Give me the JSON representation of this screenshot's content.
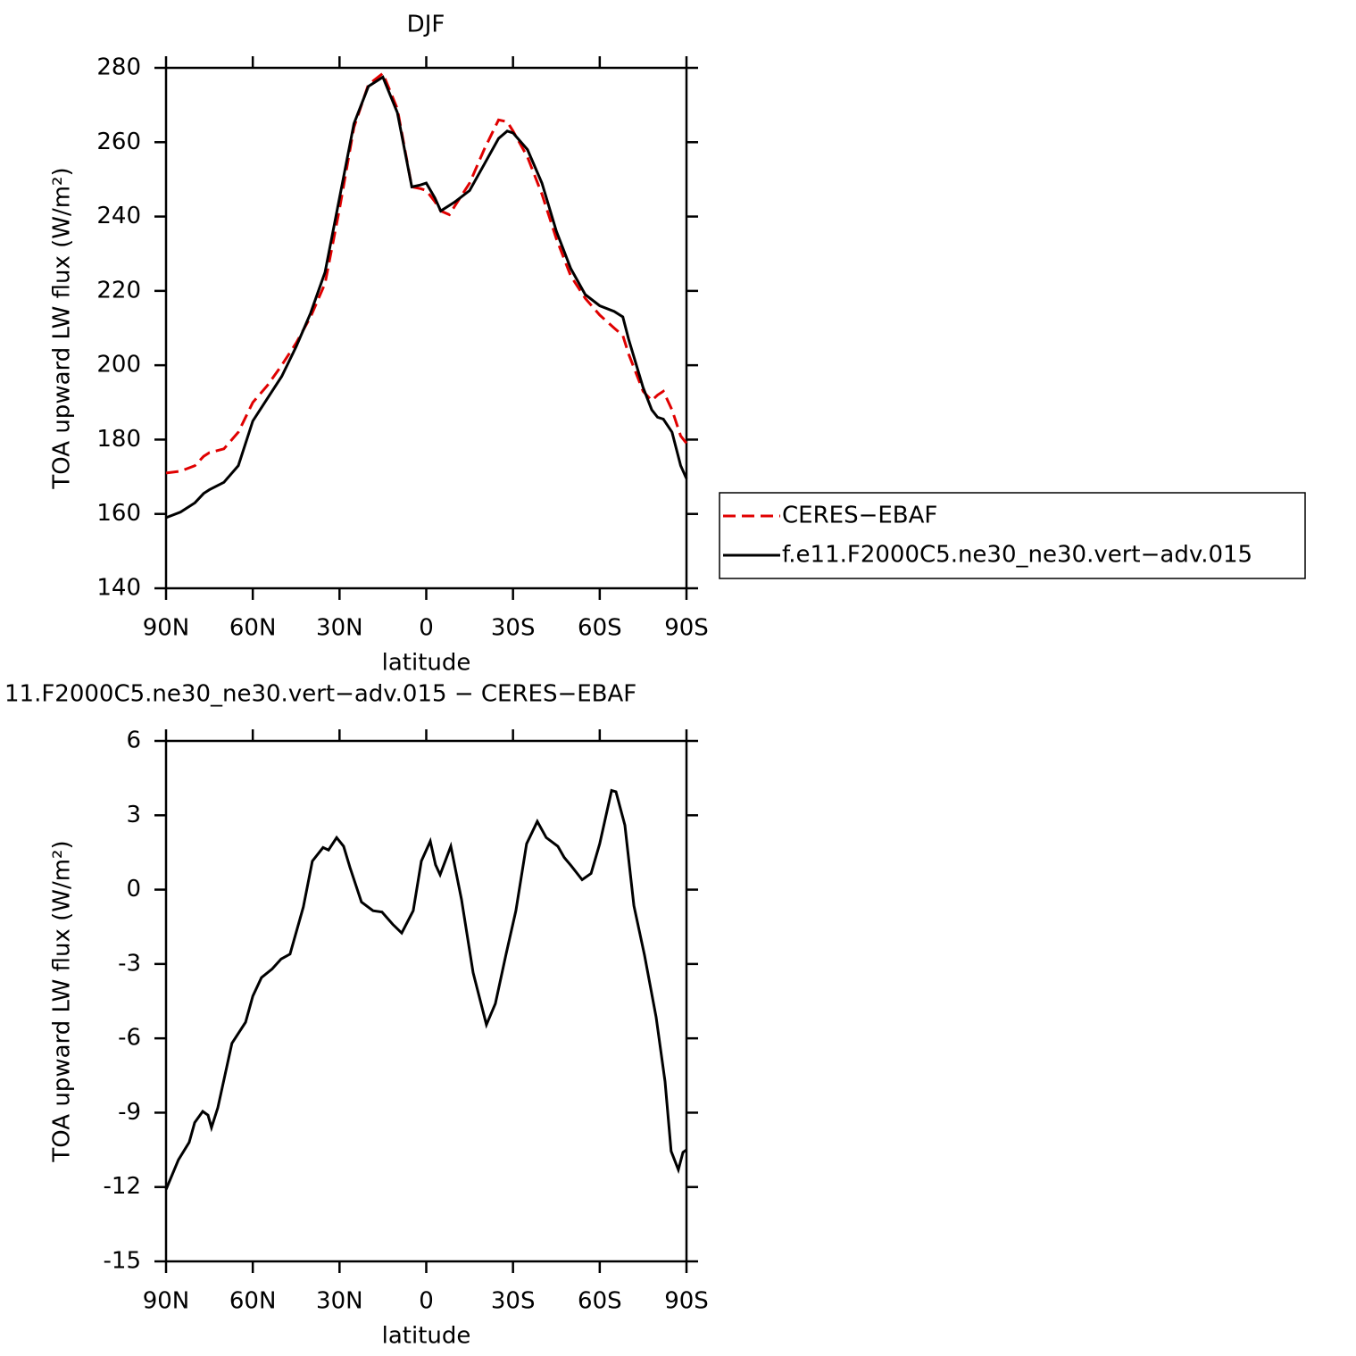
{
  "chart_data": [
    {
      "type": "line",
      "title": "DJF",
      "x_label": "latitude",
      "y_label": "TOA upward LW flux (W/m²)",
      "x": [
        90,
        85,
        80,
        77,
        75,
        70,
        65,
        60,
        55,
        50,
        45,
        40,
        35,
        30,
        25,
        20,
        15,
        10,
        5,
        2,
        0,
        -3,
        -5,
        -8,
        -10,
        -15,
        -20,
        -25,
        -28,
        -30,
        -35,
        -40,
        -45,
        -50,
        -55,
        -60,
        -65,
        -68,
        -70,
        -75,
        -78,
        -80,
        -82,
        -85,
        -88,
        -90
      ],
      "series": [
        {
          "name": "CERES−EBAF",
          "color": "#e00000",
          "style": "dashed",
          "values": [
            171,
            171.5,
            173,
            175.5,
            176.5,
            177.5,
            182,
            190,
            194.5,
            200,
            206,
            213,
            222,
            242,
            264,
            275.5,
            278.5,
            269,
            248,
            247.5,
            247,
            244,
            241.5,
            240.5,
            243,
            249,
            258,
            266,
            265.5,
            263,
            256,
            246,
            234,
            224,
            218,
            213.5,
            210,
            208,
            203,
            193,
            190.5,
            192,
            193,
            188,
            181,
            179
          ]
        },
        {
          "name": "f.e11.F2000C5.ne30_ne30.vert−adv.015",
          "color": "#000000",
          "style": "solid",
          "values": [
            159,
            160.5,
            163,
            165.5,
            166.5,
            168.5,
            173,
            185,
            191,
            197,
            205,
            214,
            225,
            245,
            265,
            275,
            277.5,
            268,
            248,
            248.5,
            249,
            245,
            241.5,
            243,
            244,
            247,
            254,
            261,
            263,
            262.5,
            258,
            249,
            236,
            226,
            219,
            216,
            214.5,
            213,
            207,
            194,
            188,
            186,
            185.5,
            182,
            173,
            169.5
          ]
        }
      ],
      "xlim": [
        90,
        -90
      ],
      "xticks": [
        {
          "value": 90,
          "label": "90N"
        },
        {
          "value": 60,
          "label": "60N"
        },
        {
          "value": 30,
          "label": "30N"
        },
        0,
        {
          "value": -30,
          "label": "30S"
        },
        {
          "value": -60,
          "label": "60S"
        },
        {
          "value": -90,
          "label": "90S"
        }
      ],
      "ylim": [
        140,
        280
      ],
      "yticks": [
        140,
        160,
        180,
        200,
        220,
        240,
        260,
        280
      ],
      "legend": "right"
    },
    {
      "type": "line",
      "title": "11.F2000C5.ne30_ne30.vert−adv.015 − CERES−EBAF",
      "x_label": "latitude",
      "y_label": "TOA upward LW flux (W/m²)",
      "x": [
        90,
        85.7,
        82,
        80.1,
        77.3,
        75.5,
        74.3,
        72.1,
        67.2,
        62.5,
        60,
        57,
        53.3,
        50.2,
        47.1,
        42.5,
        39.4,
        35.7,
        33.8,
        31,
        28.6,
        26.4,
        22.4,
        18.4,
        15.3,
        11.6,
        8.5,
        4.5,
        1.7,
        -1.4,
        -3.2,
        -4.8,
        -8.5,
        -12.2,
        -16.2,
        -20.8,
        -23.9,
        -27.6,
        -31,
        -34.7,
        -38.4,
        -41.5,
        -45.5,
        -47.7,
        -50.2,
        -53.9,
        -57,
        -60,
        -64.1,
        -65.6,
        -68.7,
        -71.8,
        -75.5,
        -79.5,
        -82.6,
        -84.7,
        -87.2,
        -88.8,
        -90
      ],
      "values": [
        -12.1,
        -10.9,
        -10.2,
        -9.4,
        -8.95,
        -9.1,
        -9.6,
        -8.8,
        -6.2,
        -5.35,
        -4.3,
        -3.55,
        -3.2,
        -2.8,
        -2.6,
        -0.7,
        1.15,
        1.7,
        1.6,
        2.1,
        1.75,
        0.9,
        -0.5,
        -0.85,
        -0.9,
        -1.4,
        -1.75,
        -0.85,
        1.15,
        1.95,
        1.0,
        0.6,
        1.75,
        -0.4,
        -3.35,
        -5.45,
        -4.6,
        -2.6,
        -0.85,
        1.85,
        2.75,
        2.1,
        1.75,
        1.3,
        0.95,
        0.4,
        0.65,
        1.85,
        4.0,
        3.95,
        2.6,
        -0.65,
        -2.65,
        -5.15,
        -7.75,
        -10.55,
        -11.3,
        -10.6,
        -10.5
      ],
      "color": "#000000",
      "xlim": [
        90,
        -90
      ],
      "xticks": [
        {
          "value": 90,
          "label": "90N"
        },
        {
          "value": 60,
          "label": "60N"
        },
        {
          "value": 30,
          "label": "30N"
        },
        0,
        {
          "value": -30,
          "label": "30S"
        },
        {
          "value": -60,
          "label": "60S"
        },
        {
          "value": -90,
          "label": "90S"
        }
      ],
      "ylim": [
        -15,
        6
      ],
      "yticks": [
        -15,
        -12,
        -9,
        -6,
        -3,
        0,
        3,
        6
      ]
    }
  ]
}
